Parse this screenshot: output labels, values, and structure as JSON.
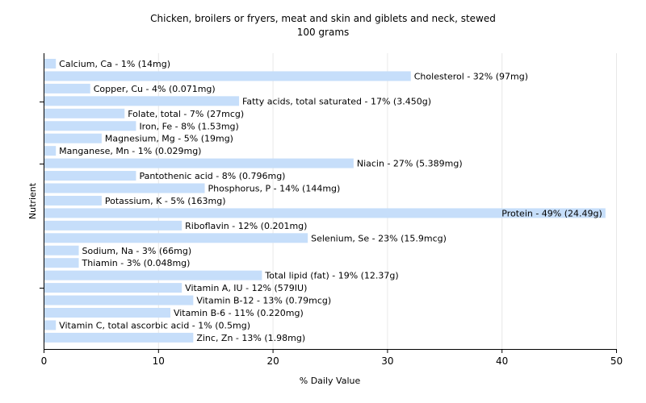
{
  "chart_data": {
    "type": "bar",
    "orientation": "horizontal",
    "title": "Chicken, broilers or fryers, meat and skin and giblets and neck, stewed",
    "subtitle": "100 grams",
    "xlabel": "% Daily Value",
    "ylabel": "Nutrient",
    "xlim": [
      0,
      50
    ],
    "xticks": [
      0,
      10,
      20,
      30,
      40,
      50
    ],
    "grid": true,
    "bar_color": "#c6defa",
    "categories": [
      "Calcium, Ca",
      "Cholesterol",
      "Copper, Cu",
      "Fatty acids, total saturated",
      "Folate, total",
      "Iron, Fe",
      "Magnesium, Mg",
      "Manganese, Mn",
      "Niacin",
      "Pantothenic acid",
      "Phosphorus, P",
      "Potassium, K",
      "Protein",
      "Riboflavin",
      "Selenium, Se",
      "Sodium, Na",
      "Thiamin",
      "Total lipid (fat)",
      "Vitamin A, IU",
      "Vitamin B-12",
      "Vitamin B-6",
      "Vitamin C, total ascorbic acid",
      "Zinc, Zn"
    ],
    "values": [
      1,
      32,
      4,
      17,
      7,
      8,
      5,
      1,
      27,
      8,
      14,
      5,
      49,
      12,
      23,
      3,
      3,
      19,
      12,
      13,
      11,
      1,
      13
    ],
    "labels": [
      "Calcium, Ca - 1% (14mg)",
      "Cholesterol - 32% (97mg)",
      "Copper, Cu - 4% (0.071mg)",
      "Fatty acids, total saturated - 17% (3.450g)",
      "Folate, total - 7% (27mcg)",
      "Iron, Fe - 8% (1.53mg)",
      "Magnesium, Mg - 5% (19mg)",
      "Manganese, Mn - 1% (0.029mg)",
      "Niacin - 27% (5.389mg)",
      "Pantothenic acid - 8% (0.796mg)",
      "Phosphorus, P - 14% (144mg)",
      "Potassium, K - 5% (163mg)",
      "Protein - 49% (24.49g)",
      "Riboflavin - 12% (0.201mg)",
      "Selenium, Se - 23% (15.9mcg)",
      "Sodium, Na - 3% (66mg)",
      "Thiamin - 3% (0.048mg)",
      "Total lipid (fat) - 19% (12.37g)",
      "Vitamin A, IU - 12% (579IU)",
      "Vitamin B-12 - 13% (0.79mcg)",
      "Vitamin B-6 - 11% (0.220mg)",
      "Vitamin C, total ascorbic acid - 1% (0.5mg)",
      "Zinc, Zn - 13% (1.98mg)"
    ]
  }
}
